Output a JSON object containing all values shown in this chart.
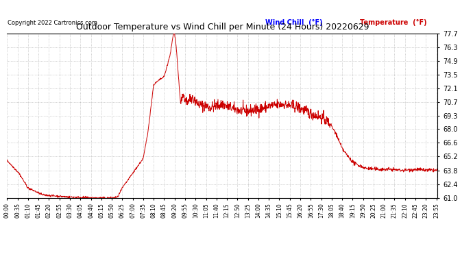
{
  "title": "Outdoor Temperature vs Wind Chill per Minute (24 Hours) 20220629",
  "copyright": "Copyright 2022 Cartronics.com",
  "legend_wind_chill": "Wind Chill  (°F)",
  "legend_temperature": "Temperature  (°F)",
  "ylim": [
    61.0,
    77.7
  ],
  "yticks": [
    61.0,
    62.4,
    63.8,
    65.2,
    66.6,
    68.0,
    69.3,
    70.7,
    72.1,
    73.5,
    74.9,
    76.3,
    77.7
  ],
  "line_color": "#cc0000",
  "background_color": "#ffffff",
  "grid_color": "#aaaaaa",
  "title_color": "#000000",
  "copyright_color": "#000000",
  "legend_wind_color": "#0000ff",
  "legend_temp_color": "#cc0000",
  "total_minutes": 1440,
  "x_tick_interval": 35,
  "figsize": [
    6.9,
    3.75
  ],
  "dpi": 100,
  "keypoints_x": [
    0,
    40,
    70,
    120,
    200,
    300,
    355,
    370,
    385,
    420,
    455,
    470,
    490,
    510,
    525,
    545,
    555,
    560,
    565,
    575,
    580,
    590,
    600,
    620,
    640,
    680,
    720,
    760,
    800,
    840,
    875,
    920,
    960,
    980,
    1000,
    1020,
    1040,
    1060,
    1080,
    1100,
    1120,
    1140,
    1160,
    1200,
    1240,
    1280,
    1320,
    1370,
    1400,
    1439
  ],
  "keypoints_y": [
    64.8,
    63.5,
    62.0,
    61.3,
    61.1,
    61.0,
    61.0,
    61.1,
    62.0,
    63.5,
    65.0,
    67.5,
    72.5,
    73.0,
    73.3,
    75.5,
    77.5,
    77.7,
    76.5,
    72.5,
    70.5,
    71.5,
    70.8,
    71.2,
    70.5,
    70.2,
    70.5,
    70.0,
    69.8,
    70.0,
    70.3,
    70.5,
    70.3,
    70.1,
    69.8,
    69.5,
    69.3,
    69.0,
    68.5,
    67.5,
    66.0,
    65.2,
    64.5,
    64.0,
    63.9,
    63.9,
    63.8,
    63.9,
    63.8,
    63.8
  ],
  "noise_seed": 42
}
